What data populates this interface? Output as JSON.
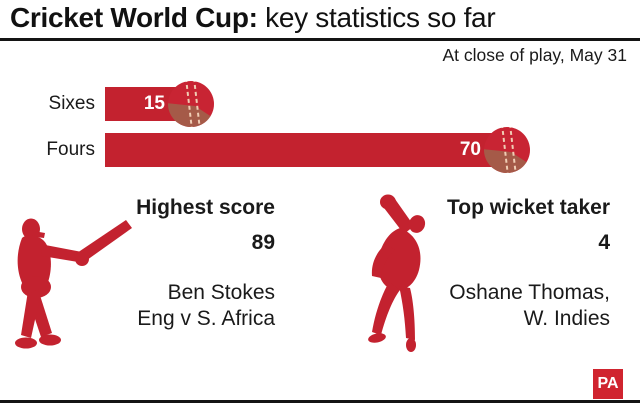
{
  "header": {
    "title_bold": "Cricket World Cup:",
    "title_regular": " key statistics so far",
    "subtitle": "At close of play, May 31"
  },
  "chart_data": {
    "type": "bar",
    "orientation": "horizontal",
    "categories": [
      "Sixes",
      "Fours"
    ],
    "values": [
      15,
      70
    ],
    "title": "Cricket World Cup: key statistics so far",
    "subtitle": "At close of play, May 31",
    "xlim": [
      0,
      70
    ],
    "grid": false,
    "bar_color": "#c3222f",
    "value_label_color": "#ffffff",
    "end_marker": "cricket-ball-icon"
  },
  "stats": [
    {
      "figure": "batsman-silhouette",
      "heading": "Highest score",
      "value": "89",
      "detail_line1": "Ben Stokes",
      "detail_line2": "Eng v S. Africa"
    },
    {
      "figure": "bowler-silhouette",
      "heading": "Top wicket taker",
      "value": "4",
      "detail_line1": "Oshane Thomas,",
      "detail_line2": "W. Indies"
    }
  ],
  "footer": {
    "logo_text": "PA"
  },
  "colors": {
    "accent_red": "#c3222f",
    "logo_red": "#d0242f",
    "ball_leather_dark": "#a55a48",
    "ball_stitch": "#f0cdb4",
    "rule_black": "#141414",
    "text_black": "#1a1a1a"
  }
}
